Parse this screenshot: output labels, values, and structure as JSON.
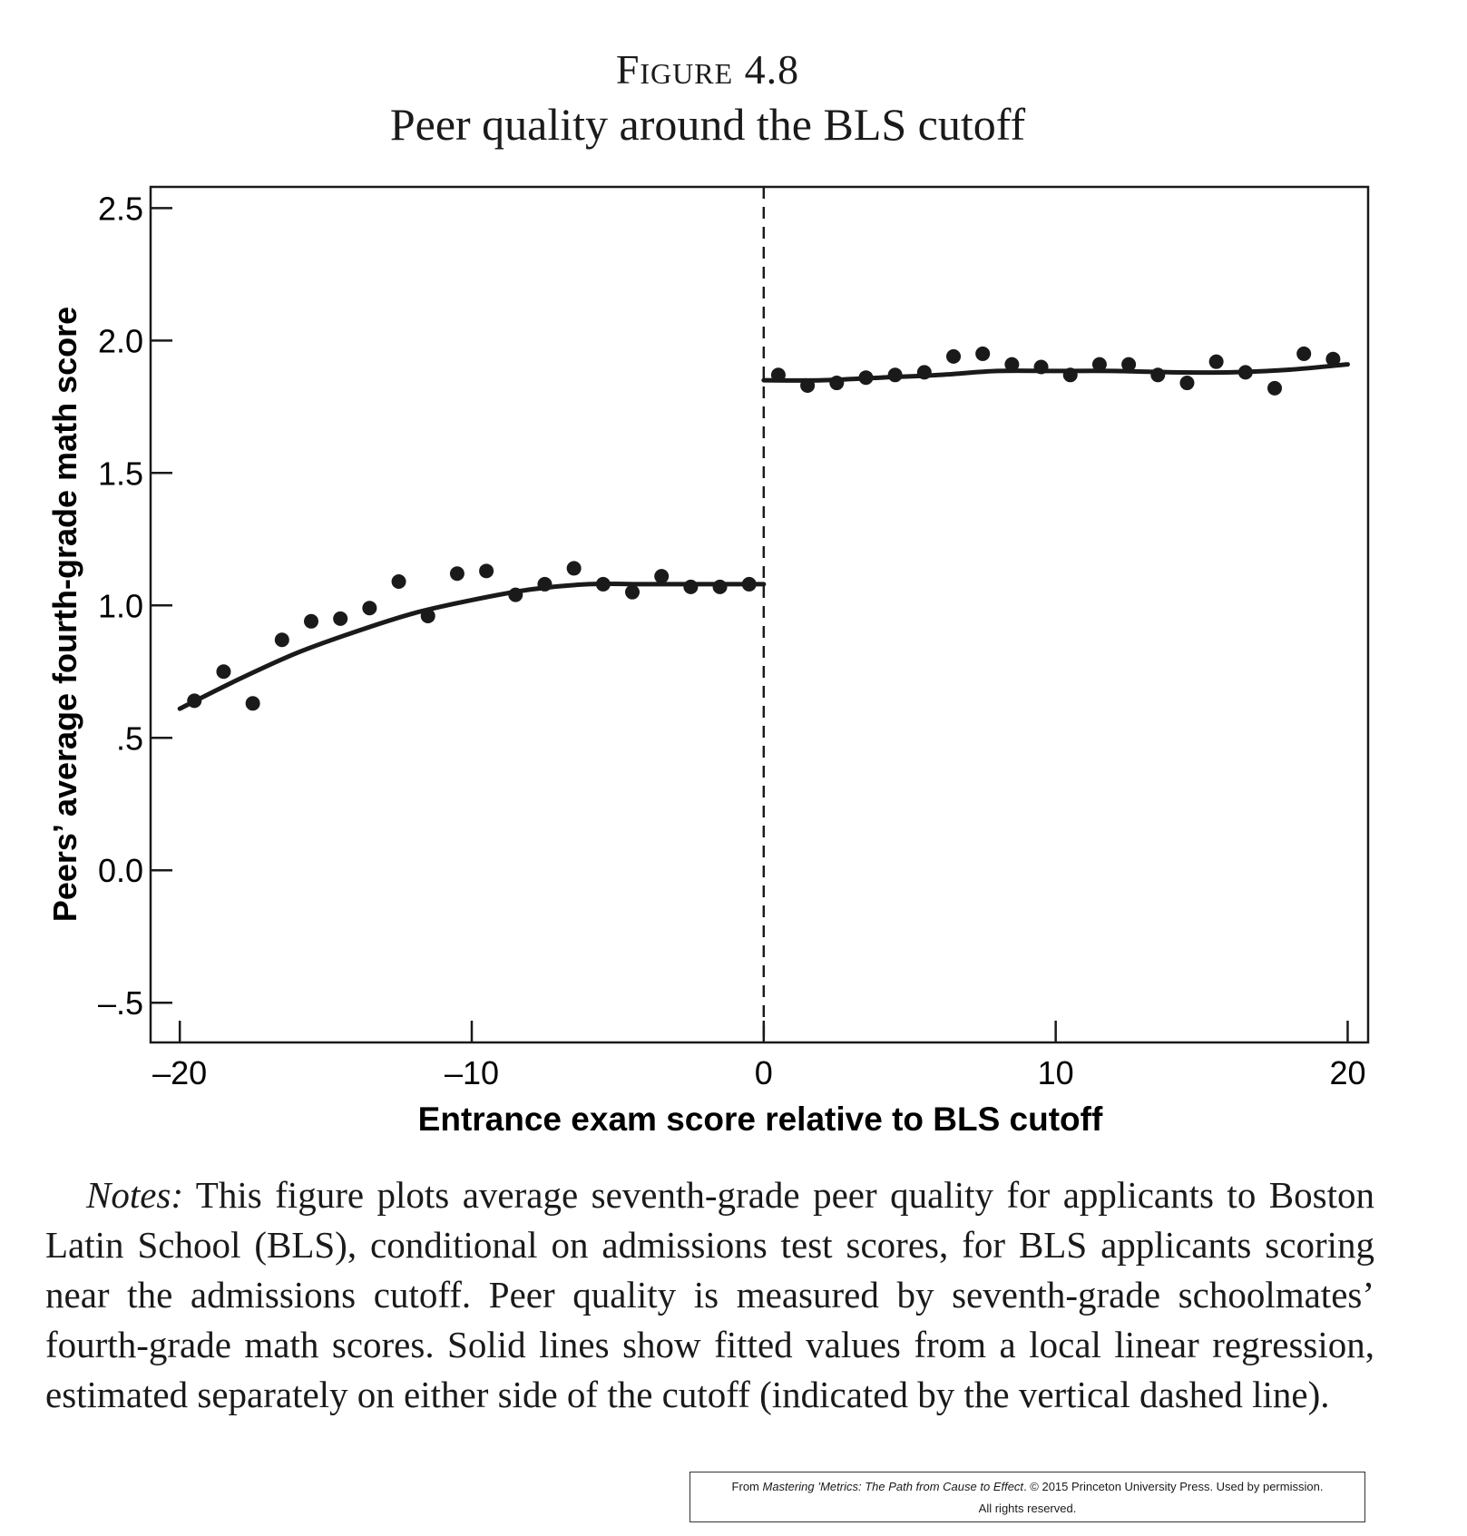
{
  "figure": {
    "label": "Figure 4.8",
    "title": "Peer quality around the BLS cutoff"
  },
  "chart_data": {
    "type": "scatter",
    "xlabel": "Entrance exam score relative to BLS cutoff",
    "ylabel": "Peers’ average fourth-grade math score",
    "xlim": [
      -21,
      20.7
    ],
    "ylim": [
      -0.65,
      2.58
    ],
    "x_ticks": [
      -20,
      -10,
      0,
      10,
      20
    ],
    "x_tick_labels": [
      "–20",
      "–10",
      "0",
      "10",
      "20"
    ],
    "y_ticks": [
      -0.5,
      0,
      0.5,
      1.0,
      1.5,
      2.0,
      2.5
    ],
    "y_tick_labels": [
      "–.5",
      "0.0",
      ".5",
      "1.0",
      "1.5",
      "2.0",
      "2.5"
    ],
    "cutoff_x": 0,
    "cutoff_style": "vertical dashed line",
    "grid": false,
    "series": [
      {
        "points": [
          [
            -19.5,
            0.64
          ],
          [
            -18.5,
            0.75
          ],
          [
            -17.5,
            0.63
          ],
          [
            -16.5,
            0.87
          ],
          [
            -15.5,
            0.94
          ],
          [
            -14.5,
            0.95
          ],
          [
            -13.5,
            0.99
          ],
          [
            -12.5,
            1.09
          ],
          [
            -11.5,
            0.96
          ],
          [
            -10.5,
            1.12
          ],
          [
            -9.5,
            1.13
          ],
          [
            -8.5,
            1.04
          ],
          [
            -7.5,
            1.08
          ],
          [
            -6.5,
            1.14
          ],
          [
            -5.5,
            1.08
          ],
          [
            -4.5,
            1.05
          ],
          [
            -3.5,
            1.11
          ],
          [
            -2.5,
            1.07
          ],
          [
            -1.5,
            1.07
          ],
          [
            -0.5,
            1.08
          ]
        ]
      },
      {
        "points": [
          [
            0.5,
            1.87
          ],
          [
            1.5,
            1.83
          ],
          [
            2.5,
            1.84
          ],
          [
            3.5,
            1.86
          ],
          [
            4.5,
            1.87
          ],
          [
            5.5,
            1.88
          ],
          [
            6.5,
            1.94
          ],
          [
            7.5,
            1.95
          ],
          [
            8.5,
            1.91
          ],
          [
            9.5,
            1.9
          ],
          [
            10.5,
            1.87
          ],
          [
            11.5,
            1.91
          ],
          [
            12.5,
            1.91
          ],
          [
            13.5,
            1.87
          ],
          [
            14.5,
            1.84
          ],
          [
            15.5,
            1.92
          ],
          [
            16.5,
            1.88
          ],
          [
            17.5,
            1.82
          ],
          [
            18.5,
            1.95
          ],
          [
            19.5,
            1.93
          ]
        ]
      }
    ],
    "fitted_lines": [
      {
        "points": [
          [
            -20,
            0.61
          ],
          [
            -18,
            0.72
          ],
          [
            -16,
            0.82
          ],
          [
            -14,
            0.9
          ],
          [
            -12,
            0.97
          ],
          [
            -10,
            1.02
          ],
          [
            -8,
            1.06
          ],
          [
            -6,
            1.08
          ],
          [
            -4,
            1.08
          ],
          [
            -2,
            1.08
          ],
          [
            0,
            1.08
          ]
        ]
      },
      {
        "points": [
          [
            0,
            1.85
          ],
          [
            2,
            1.85
          ],
          [
            4,
            1.86
          ],
          [
            6,
            1.87
          ],
          [
            8,
            1.885
          ],
          [
            10,
            1.885
          ],
          [
            12,
            1.885
          ],
          [
            14,
            1.88
          ],
          [
            16,
            1.88
          ],
          [
            18,
            1.89
          ],
          [
            20,
            1.91
          ]
        ]
      }
    ]
  },
  "notes": {
    "lead": "Notes:",
    "text": " This figure plots average seventh-grade peer quality for applicants to Boston Latin School (BLS), conditional on admissions test scores, for BLS applicants scoring near the admissions cutoff. Peer quality is measured by seventh-grade schoolmates’ fourth-grade math scores. Solid lines show fitted values from a local linear regression, estimated separately on either side of the cutoff (indicated by the vertical dashed line)."
  },
  "credit": {
    "prefix": "From ",
    "book": "Mastering ’Metrics: The Path from Cause to Effect",
    "suffix": ". © 2015 Princeton University Press. Used by permission.",
    "line2": "All rights reserved."
  }
}
